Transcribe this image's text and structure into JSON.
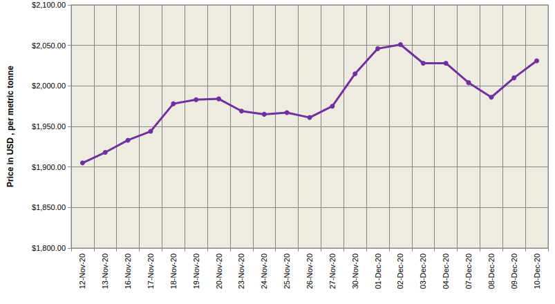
{
  "chart_data": {
    "type": "line",
    "y_label": "Price in USD , per metric tonne",
    "categories": [
      "12-Nov-20",
      "13-Nov-20",
      "16-Nov-20",
      "17-Nov-20",
      "18-Nov-20",
      "19-Nov-20",
      "20-Nov-20",
      "23-Nov-20",
      "24-Nov-20",
      "25-Nov-20",
      "26-Nov-20",
      "27-Nov-20",
      "30-Nov-20",
      "01-Dec-20",
      "02-Dec-20",
      "03-Dec-20",
      "04-Dec-20",
      "07-Dec-20",
      "08-Dec-20",
      "09-Dec-20",
      "10-Dec-20"
    ],
    "values": [
      1905,
      1918,
      1933,
      1944,
      1978,
      1983,
      1984,
      1969,
      1965,
      1967,
      1961,
      1975,
      2015,
      2046,
      2051,
      2028,
      2028,
      2004,
      1986,
      2010,
      2031
    ],
    "color": "#7030a0",
    "marker": "circle",
    "line_style": "solid",
    "ylim": [
      1800,
      2100
    ],
    "yticks": [
      {
        "value": 1800,
        "label": "$1,800.00"
      },
      {
        "value": 1850,
        "label": "$1,850.00"
      },
      {
        "value": 1900,
        "label": "$1,900.00"
      },
      {
        "value": 1950,
        "label": "$1,950.00"
      },
      {
        "value": 2000,
        "label": "$2,000.00"
      },
      {
        "value": 2050,
        "label": "$2,050.00"
      },
      {
        "value": 2100,
        "label": "$2,100.00"
      }
    ],
    "grid": true
  }
}
